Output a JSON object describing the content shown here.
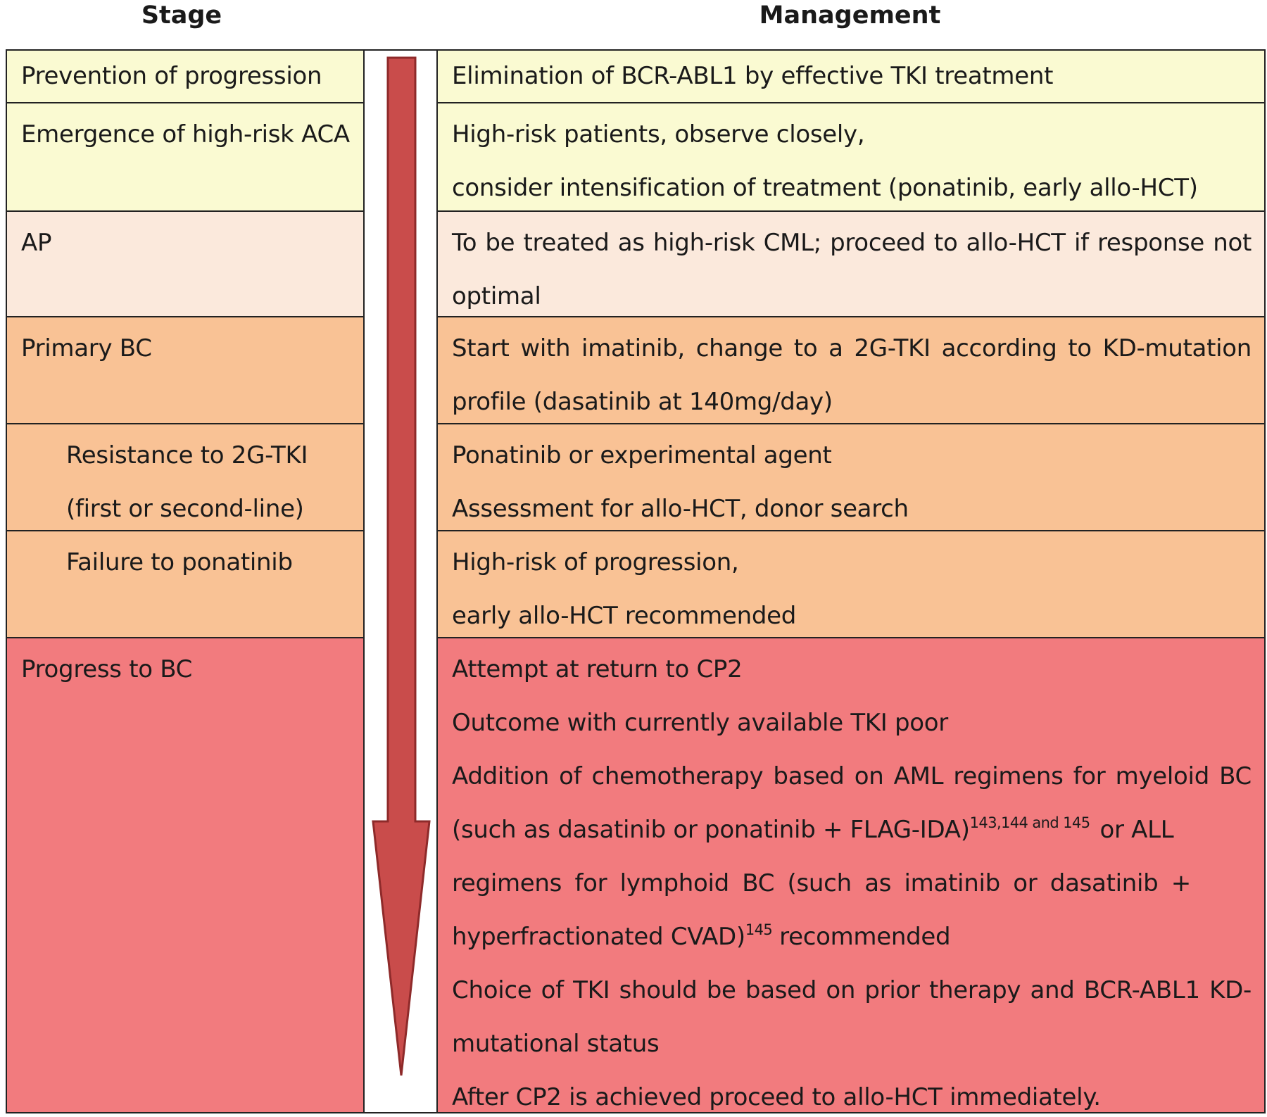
{
  "header": {
    "stage": "Stage",
    "management": "Management"
  },
  "rows": [
    {
      "stage": [
        "Prevention of progression"
      ],
      "management": [
        "Elimination of BCR-ABL1 by effective TKI treatment"
      ]
    },
    {
      "stage": [
        "Emergence of high-risk ACA"
      ],
      "management": [
        "High-risk patients, observe closely,",
        "consider intensification of treatment (ponatinib, early allo-HCT)"
      ]
    },
    {
      "stage": [
        "AP"
      ],
      "management": [
        "To be treated as high-risk CML; proceed to allo-HCT if response not",
        "optimal"
      ]
    },
    {
      "stage": [
        "Primary BC"
      ],
      "management": [
        "Start with imatinib, change to a 2G-TKI according to KD-mutation",
        "profile (dasatinib at 140mg/day)"
      ]
    },
    {
      "stage": [
        "Resistance to 2G-TKI",
        "(first or second-line)"
      ],
      "management": [
        "Ponatinib or experimental agent",
        "Assessment for allo-HCT, donor search"
      ]
    },
    {
      "stage": [
        "Failure to ponatinib"
      ],
      "management": [
        "High-risk of progression,",
        "early allo-HCT recommended"
      ]
    },
    {
      "stage": [
        "Progress to BC"
      ],
      "management": [
        "Attempt at return to CP2",
        "Outcome with currently available TKI poor",
        "Addition of chemotherapy based on AML regimens for myeloid BC",
        "(such as dasatinib or ponatinib + FLAG-IDA)",
        "143,144 and 145",
        "or ALL",
        "regimens for lymphoid BC (such as imatinib or dasatinib +",
        "hyperfractionated CVAD)",
        "145",
        "recommended",
        "Choice of TKI should be based on prior therapy and BCR-ABL1 KD-",
        "mutational status",
        "After CP2 is achieved proceed to allo-HCT immediately."
      ]
    }
  ],
  "colors": {
    "prevention": "#fafad2",
    "ap": "#fbe9dc",
    "primary_bc": "#f9c295",
    "progress_bc": "#f27b7e",
    "arrow_fill": "#c94c4b",
    "arrow_stroke": "#8e2a2a"
  }
}
